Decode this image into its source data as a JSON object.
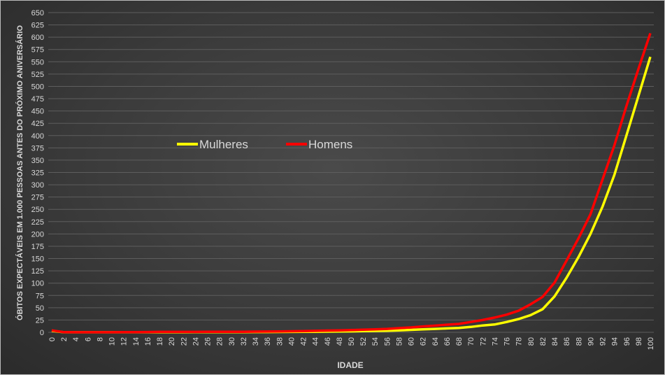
{
  "chart_data": {
    "type": "line",
    "title": "",
    "xlabel": "IDADE",
    "ylabel": "ÓBITOS EXPECTÁVEIS EM 1.000 PESSOAS ANTES DO PRÓXIMO ANIVERSÁRIO",
    "xlim": [
      0,
      100
    ],
    "ylim": [
      0,
      650
    ],
    "y_tick_step": 25,
    "x_tick_step": 2,
    "grid": "horizontal",
    "legend_position": "upper-left inside plot",
    "x": [
      0,
      2,
      4,
      6,
      8,
      10,
      12,
      14,
      16,
      18,
      20,
      22,
      24,
      26,
      28,
      30,
      32,
      34,
      36,
      38,
      40,
      42,
      44,
      46,
      48,
      50,
      52,
      54,
      56,
      58,
      60,
      62,
      64,
      66,
      68,
      70,
      72,
      74,
      76,
      78,
      80,
      82,
      84,
      86,
      88,
      90,
      92,
      94,
      96,
      98,
      100
    ],
    "series": [
      {
        "name": "Mulheres",
        "color": "#ffff00",
        "values": [
          3,
          0.2,
          0.1,
          0.1,
          0.1,
          0.1,
          0.1,
          0.1,
          0.2,
          0.2,
          0.2,
          0.2,
          0.3,
          0.3,
          0.3,
          0.3,
          0.4,
          0.5,
          0.6,
          0.7,
          0.8,
          1,
          1.2,
          1.4,
          1.7,
          2,
          2.4,
          2.8,
          3.3,
          4,
          5,
          6,
          7,
          8,
          9,
          11,
          14,
          16,
          21,
          27,
          35,
          47,
          73,
          111,
          153,
          200,
          255,
          320,
          400,
          480,
          560
        ]
      },
      {
        "name": "Homens",
        "color": "#ff0000",
        "values": [
          4,
          0.3,
          0.2,
          0.2,
          0.2,
          0.2,
          0.3,
          0.4,
          0.6,
          0.8,
          0.9,
          0.9,
          0.9,
          1,
          1,
          1.1,
          1.2,
          1.4,
          1.6,
          1.9,
          2.2,
          2.6,
          3,
          3.5,
          4,
          4.6,
          5.3,
          6,
          7,
          8.5,
          10,
          12,
          13.5,
          15.5,
          17,
          21,
          25,
          30,
          36,
          44,
          57,
          72,
          101,
          146,
          191,
          240,
          310,
          380,
          460,
          535,
          608
        ]
      }
    ]
  }
}
